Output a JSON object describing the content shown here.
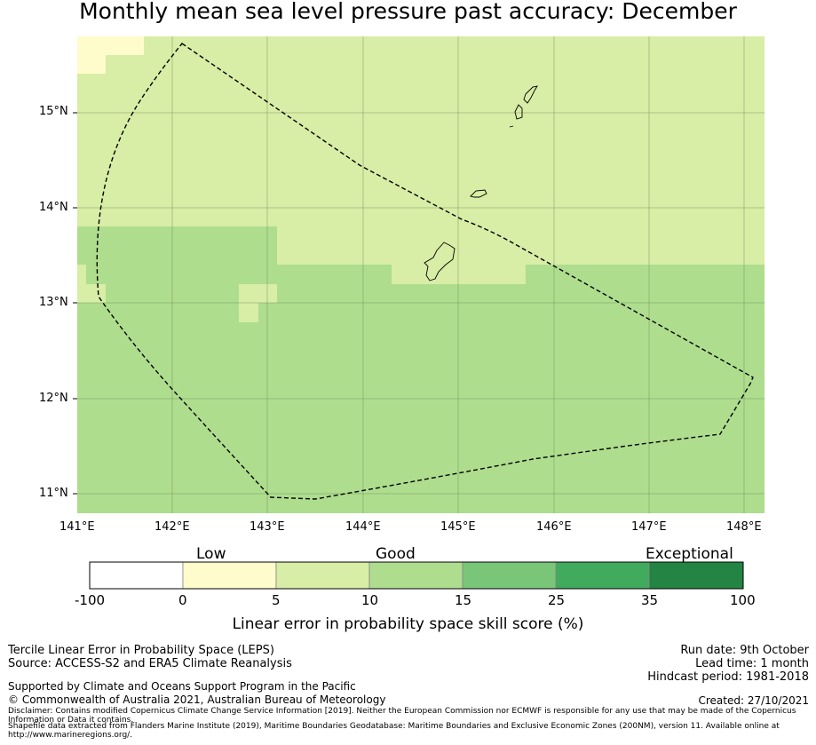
{
  "title": "Monthly mean sea level pressure past accuracy: December",
  "map": {
    "lat_labels": [
      "15°N",
      "14°N",
      "13°N",
      "12°N",
      "11°N"
    ],
    "lon_labels": [
      "141°E",
      "142°E",
      "143°E",
      "144°E",
      "145°E",
      "146°E",
      "147°E",
      "148°E"
    ],
    "colors": {
      "low": "#fefccb",
      "good_low": "#d8eda5",
      "good_high": "#aedd8e",
      "coast": "#000000"
    }
  },
  "colorbar": {
    "category_labels": [
      "Low",
      "Good",
      "Exceptional"
    ],
    "ticks": [
      "-100",
      "0",
      "5",
      "10",
      "15",
      "25",
      "35",
      "100"
    ],
    "colors": [
      "#ffffff",
      "#fefccb",
      "#d8eda5",
      "#aedd8e",
      "#79c679",
      "#41ab5d",
      "#238443"
    ],
    "label": "Linear error in probability space skill score (%)"
  },
  "info": {
    "method": "Tercile Linear Error in Probability Space (LEPS)",
    "source": "Source: ACCESS-S2 and ERA5 Climate Reanalysis",
    "run_date": "Run date: 9th October",
    "lead_time": "Lead time: 1 month",
    "hindcast": "Hindcast period: 1981-2018",
    "support": "Supported by Climate and Oceans Support Program in the Pacific",
    "copyright": "© Commonwealth of Australia 2021, Australian Bureau of Meteorology",
    "created": "Created: 27/10/2021",
    "disclaimer": "Disclaimer: Contains modified Copernicus Climate Change Service Information [2019]. Neither the European Commission nor ECMWF is responsible for any use that may be made of the Copernicus Information or Data it contains.",
    "shapefile": "Shapefile data extracted from Flanders Marine Institute (2019), Maritime Boundaries Geodatabase: Maritime Boundaries and Exclusive Economic Zones (200NM), version 11. Available online at http://www.marineregions.org/."
  }
}
